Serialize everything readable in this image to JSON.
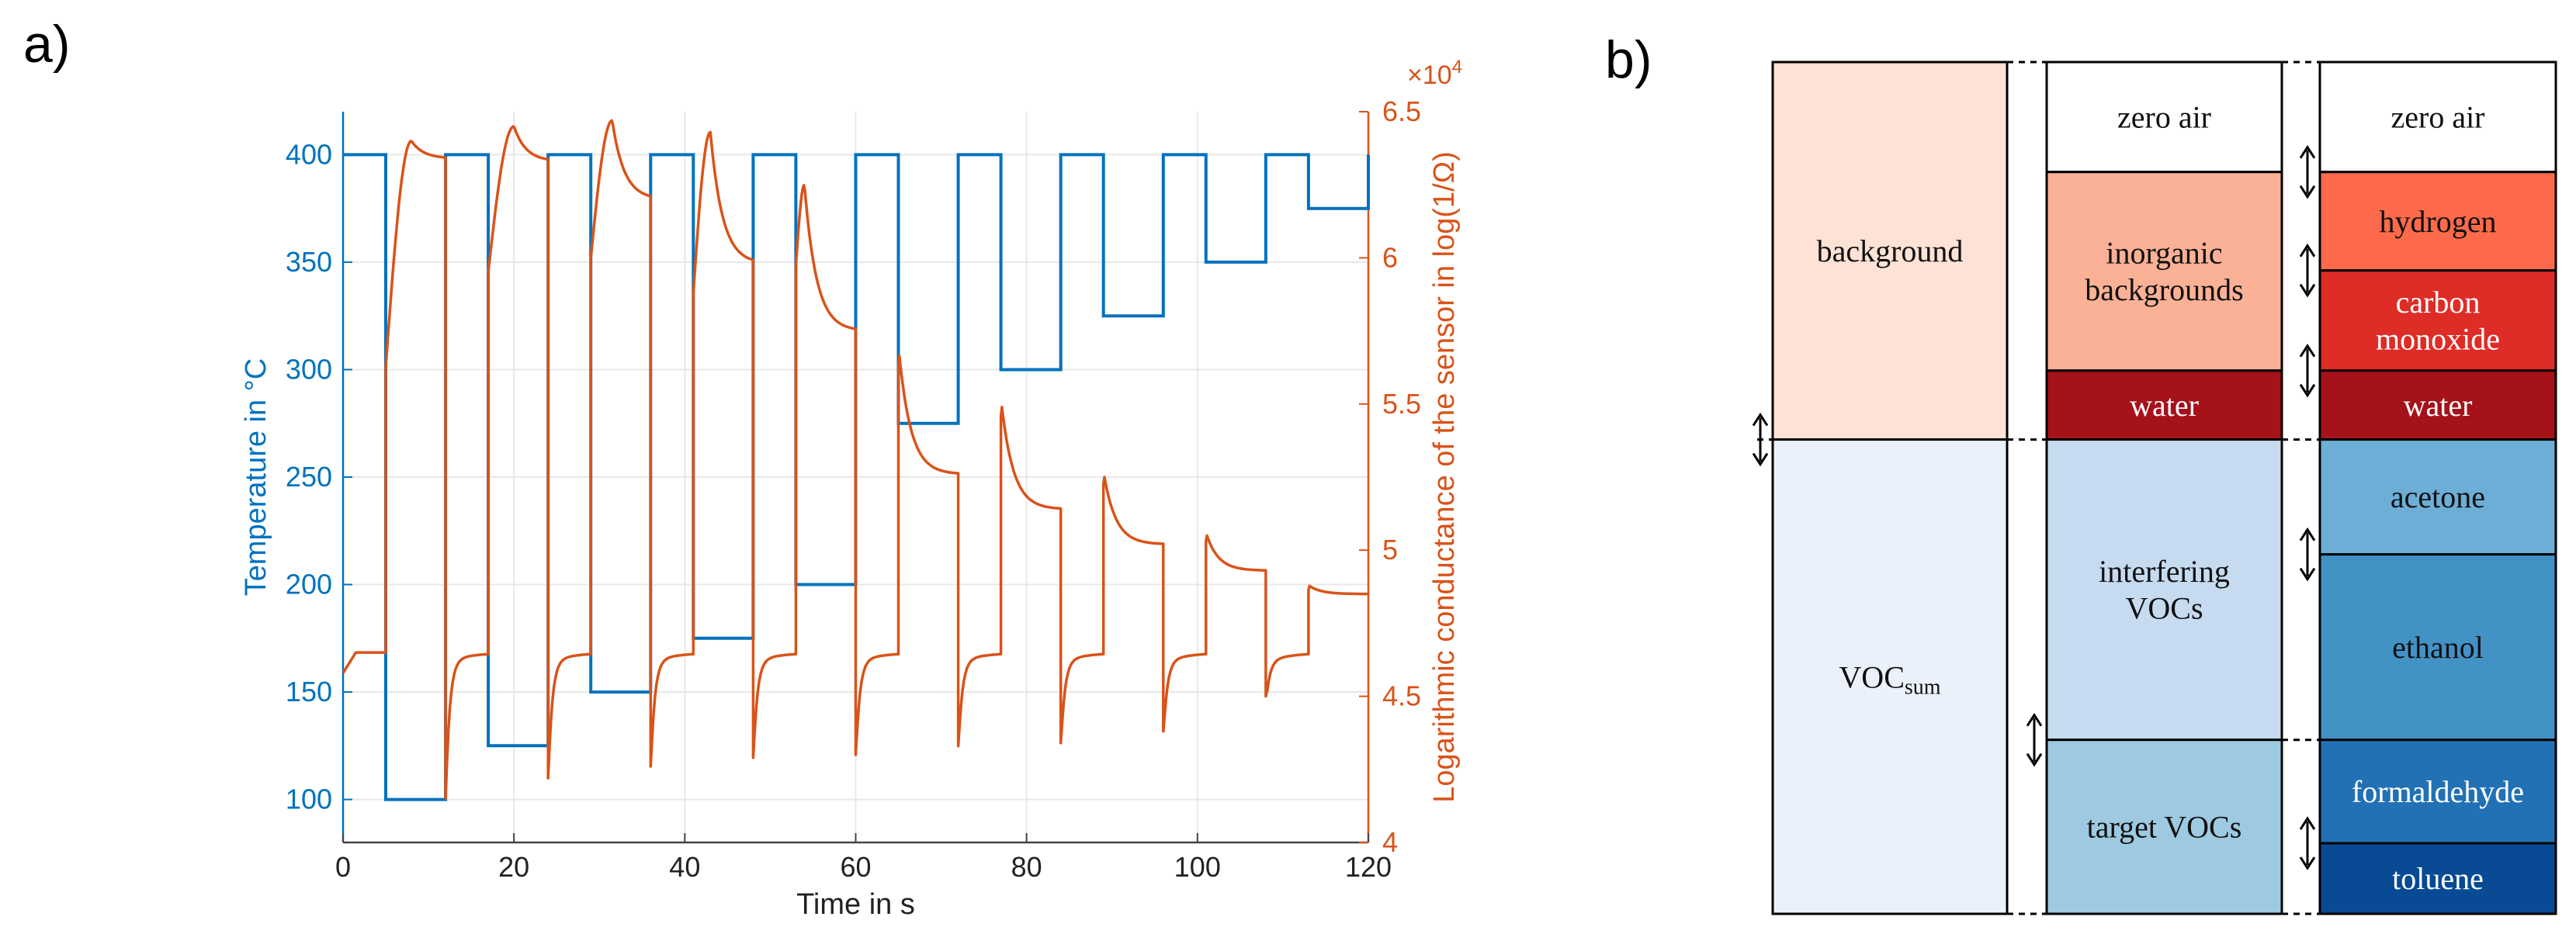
{
  "panel_labels": {
    "a": "a)",
    "b": "b)"
  },
  "colors": {
    "temperature": "#0072bd",
    "conductance": "#d95319",
    "grid": "#e8e8e8",
    "axis": "#333333"
  },
  "chart_data": [
    {
      "type": "line",
      "panel": "a",
      "xlabel": "Time in s",
      "ylabel_left": "Temperature in °C",
      "ylabel_right": "Logarithmic conductance of the sensor in log(1/Ω)",
      "right_exponent_base": "×10",
      "right_exponent_power": "4",
      "xlim": [
        0,
        120
      ],
      "ylim_left": [
        80,
        420
      ],
      "ylim_right": [
        40000,
        65000
      ],
      "x_ticks": [
        0,
        20,
        40,
        60,
        80,
        100,
        120
      ],
      "x_tick_labels": [
        "0",
        "20",
        "40",
        "60",
        "80",
        "100",
        "120"
      ],
      "left_ticks": [
        100,
        150,
        200,
        250,
        300,
        350,
        400
      ],
      "left_tick_labels": [
        "100",
        "150",
        "200",
        "250",
        "300",
        "350",
        "400"
      ],
      "right_ticks": [
        40000,
        45000,
        50000,
        55000,
        60000,
        65000
      ],
      "right_tick_labels": [
        "4",
        "4.5",
        "5",
        "5.5",
        "6",
        "6.5"
      ],
      "grid": true,
      "series": [
        {
          "name": "Temperature",
          "axis": "left",
          "color": "#0072bd",
          "cycle_period": 12,
          "high_low_start": 5,
          "high_temp": 400,
          "low_temps": [
            100,
            125,
            150,
            175,
            200,
            275,
            300,
            325,
            350,
            375
          ],
          "low_durations": [
            7,
            7,
            7,
            7,
            7,
            7,
            7,
            7,
            7,
            7
          ]
        },
        {
          "name": "Logarithmic conductance",
          "axis": "right",
          "color": "#d95319",
          "baseline": 46500,
          "cycles": [
            {
              "start": 5,
              "end": 12,
              "spike": 57000,
              "peak": 64000,
              "settle": 63400,
              "tpeak": 8
            },
            {
              "start": 17,
              "end": 24,
              "spike": 60500,
              "peak": 64500,
              "settle": 63300,
              "tpeak": 20
            },
            {
              "start": 29,
              "end": 36,
              "spike": 61000,
              "peak": 64700,
              "settle": 62000,
              "tpeak": 31.5
            },
            {
              "start": 41,
              "end": 48,
              "spike": 59700,
              "peak": 64300,
              "settle": 59800,
              "tpeak": 43
            },
            {
              "start": 53,
              "end": 60,
              "spike": 60700,
              "peak": 62500,
              "settle": 57500,
              "tpeak": 54
            },
            {
              "start": 65,
              "end": 72,
              "spike": 57000,
              "peak": 57000,
              "settle": 52600,
              "tpeak": 65
            },
            {
              "start": 77,
              "end": 84,
              "spike": 55200,
              "peak": 55200,
              "settle": 51400,
              "tpeak": 77
            },
            {
              "start": 89,
              "end": 96,
              "spike": 52700,
              "peak": 52700,
              "settle": 50200,
              "tpeak": 89
            },
            {
              "start": 101,
              "end": 108,
              "spike": 50600,
              "peak": 50600,
              "settle": 49300,
              "tpeak": 101
            },
            {
              "start": 113,
              "end": 120,
              "spike": 48800,
              "peak": 48800,
              "settle": 48500,
              "tpeak": 113
            }
          ],
          "dips": [
            {
              "t": 12,
              "v": 41500
            },
            {
              "t": 24,
              "v": 42200
            },
            {
              "t": 36,
              "v": 42600
            },
            {
              "t": 48,
              "v": 42900
            },
            {
              "t": 60,
              "v": 43000
            },
            {
              "t": 72,
              "v": 43300
            },
            {
              "t": 84,
              "v": 43400
            },
            {
              "t": 96,
              "v": 43800
            },
            {
              "t": 108,
              "v": 45000
            }
          ]
        }
      ]
    },
    {
      "type": "diagram",
      "panel": "b",
      "columns": [
        {
          "name": "level-1",
          "blocks": [
            {
              "label": "background",
              "color": "#fde2d5",
              "size": 230
            },
            {
              "label": "VOC",
              "subscript": "sum",
              "color": "#ebf1fb",
              "size": 289
            }
          ]
        },
        {
          "name": "level-2",
          "blocks": [
            {
              "label": "zero air",
              "color": "#ffffff",
              "size": 67
            },
            {
              "label": "inorganic\nbackgrounds",
              "color": "#fbb196",
              "size": 121
            },
            {
              "label": "water",
              "color": "#a5121a",
              "size": 42
            },
            {
              "label": "interfering\nVOCs",
              "color": "#c6dbef",
              "size": 183
            },
            {
              "label": "target VOCs",
              "color": "#9ecae1",
              "size": 106
            }
          ]
        },
        {
          "name": "level-3",
          "blocks": [
            {
              "label": "zero air",
              "color": "#ffffff",
              "size": 67
            },
            {
              "label": "hydrogen",
              "color": "#fc6a4b",
              "size": 60
            },
            {
              "label": "carbon\nmonoxide",
              "color": "#de2c27",
              "size": 61
            },
            {
              "label": "water",
              "color": "#a5121a",
              "size": 42
            },
            {
              "label": "acetone",
              "color": "#6caed6",
              "size": 70
            },
            {
              "label": "ethanol",
              "color": "#4292c6",
              "size": 113
            },
            {
              "label": "formaldehyde",
              "color": "#2271b5",
              "size": 63
            },
            {
              "label": "toluene",
              "color": "#084a94",
              "size": 43
            }
          ]
        }
      ]
    }
  ]
}
